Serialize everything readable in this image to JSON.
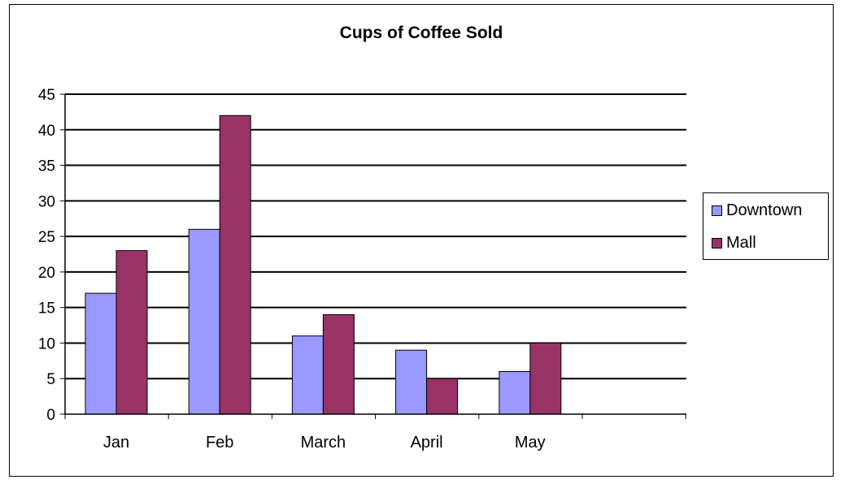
{
  "chart_data": {
    "type": "bar",
    "title": "Cups of Coffee Sold",
    "categories": [
      "Jan",
      "Feb",
      "March",
      "April",
      "May"
    ],
    "series": [
      {
        "name": "Downtown",
        "values": [
          17,
          26,
          11,
          9,
          6
        ],
        "color": "#9999ff"
      },
      {
        "name": "Mall",
        "values": [
          23,
          42,
          14,
          5,
          10
        ],
        "color": "#993366"
      }
    ],
    "ylim": [
      0,
      45
    ],
    "yticks": [
      0,
      5,
      10,
      15,
      20,
      25,
      30,
      35,
      40,
      45
    ],
    "xlabel": "",
    "ylabel": "",
    "grid": true,
    "legend_position": "right"
  }
}
